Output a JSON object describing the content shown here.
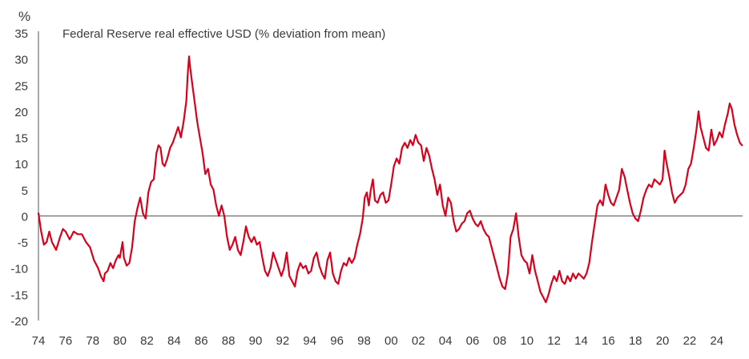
{
  "chart_data": {
    "type": "line",
    "title": "Federal Reserve real effective USD (% deviation from mean)",
    "ylabel": "%",
    "xlabel": "",
    "ylim": [
      -20,
      35
    ],
    "xlim": [
      1974.0,
      2025.9
    ],
    "yticks": [
      35,
      30,
      25,
      20,
      15,
      10,
      5,
      0,
      -5,
      -10,
      -15,
      -20
    ],
    "xtick_values": [
      1974,
      1976,
      1978,
      1980,
      1982,
      1984,
      1986,
      1988,
      1990,
      1992,
      1994,
      1996,
      1998,
      2000,
      2002,
      2004,
      2006,
      2008,
      2010,
      2012,
      2014,
      2016,
      2018,
      2020,
      2022,
      2024
    ],
    "xtick_labels": [
      "74",
      "76",
      "78",
      "80",
      "82",
      "84",
      "86",
      "88",
      "90",
      "92",
      "94",
      "96",
      "98",
      "00",
      "02",
      "04",
      "06",
      "08",
      "10",
      "12",
      "14",
      "16",
      "18",
      "20",
      "22",
      "24"
    ],
    "grid": false,
    "zero_line": true,
    "line_color": "#d9001b",
    "axis_color": "#555555",
    "series": [
      {
        "values": [
          [
            1974.0,
            0.5
          ],
          [
            1974.2,
            -3.0
          ],
          [
            1974.4,
            -5.5
          ],
          [
            1974.6,
            -5.0
          ],
          [
            1974.8,
            -3.0
          ],
          [
            1975.0,
            -5.0
          ],
          [
            1975.3,
            -6.5
          ],
          [
            1975.6,
            -4.0
          ],
          [
            1975.8,
            -2.5
          ],
          [
            1976.0,
            -3.0
          ],
          [
            1976.3,
            -4.5
          ],
          [
            1976.6,
            -3.0
          ],
          [
            1976.9,
            -3.5
          ],
          [
            1977.2,
            -3.5
          ],
          [
            1977.5,
            -5.0
          ],
          [
            1977.8,
            -6.0
          ],
          [
            1978.1,
            -8.5
          ],
          [
            1978.4,
            -10.0
          ],
          [
            1978.6,
            -11.5
          ],
          [
            1978.8,
            -12.5
          ],
          [
            1978.9,
            -11.0
          ],
          [
            1979.1,
            -10.5
          ],
          [
            1979.3,
            -9.0
          ],
          [
            1979.5,
            -10.0
          ],
          [
            1979.7,
            -8.5
          ],
          [
            1979.9,
            -7.5
          ],
          [
            1980.0,
            -8.0
          ],
          [
            1980.2,
            -5.0
          ],
          [
            1980.3,
            -8.0
          ],
          [
            1980.5,
            -9.5
          ],
          [
            1980.7,
            -9.0
          ],
          [
            1980.9,
            -6.0
          ],
          [
            1981.1,
            -1.0
          ],
          [
            1981.3,
            1.5
          ],
          [
            1981.5,
            3.5
          ],
          [
            1981.7,
            0.5
          ],
          [
            1981.9,
            -0.5
          ],
          [
            1982.1,
            4.5
          ],
          [
            1982.3,
            6.5
          ],
          [
            1982.5,
            7.0
          ],
          [
            1982.7,
            12.0
          ],
          [
            1982.85,
            13.5
          ],
          [
            1983.0,
            13.0
          ],
          [
            1983.15,
            10.0
          ],
          [
            1983.3,
            9.5
          ],
          [
            1983.5,
            11.0
          ],
          [
            1983.7,
            13.0
          ],
          [
            1983.9,
            14.0
          ],
          [
            1984.1,
            15.5
          ],
          [
            1984.3,
            17.0
          ],
          [
            1984.5,
            15.0
          ],
          [
            1984.7,
            18.0
          ],
          [
            1984.9,
            22.0
          ],
          [
            1985.0,
            27.0
          ],
          [
            1985.1,
            30.5
          ],
          [
            1985.2,
            28.0
          ],
          [
            1985.35,
            25.0
          ],
          [
            1985.5,
            22.0
          ],
          [
            1985.7,
            18.0
          ],
          [
            1985.9,
            15.0
          ],
          [
            1986.1,
            12.0
          ],
          [
            1986.3,
            8.0
          ],
          [
            1986.5,
            9.0
          ],
          [
            1986.7,
            6.0
          ],
          [
            1986.9,
            5.0
          ],
          [
            1987.1,
            2.0
          ],
          [
            1987.3,
            0.0
          ],
          [
            1987.5,
            2.0
          ],
          [
            1987.7,
            0.0
          ],
          [
            1987.9,
            -4.0
          ],
          [
            1988.1,
            -6.5
          ],
          [
            1988.3,
            -5.5
          ],
          [
            1988.5,
            -4.0
          ],
          [
            1988.7,
            -6.5
          ],
          [
            1988.9,
            -7.5
          ],
          [
            1989.1,
            -5.0
          ],
          [
            1989.3,
            -2.0
          ],
          [
            1989.5,
            -4.0
          ],
          [
            1989.7,
            -5.0
          ],
          [
            1989.9,
            -4.0
          ],
          [
            1990.1,
            -5.5
          ],
          [
            1990.3,
            -5.0
          ],
          [
            1990.5,
            -8.0
          ],
          [
            1990.7,
            -10.5
          ],
          [
            1990.9,
            -11.5
          ],
          [
            1991.1,
            -10.0
          ],
          [
            1991.3,
            -7.0
          ],
          [
            1991.5,
            -8.5
          ],
          [
            1991.7,
            -10.0
          ],
          [
            1991.9,
            -11.5
          ],
          [
            1992.1,
            -10.0
          ],
          [
            1992.3,
            -7.0
          ],
          [
            1992.5,
            -11.5
          ],
          [
            1992.7,
            -12.5
          ],
          [
            1992.9,
            -13.5
          ],
          [
            1993.1,
            -10.5
          ],
          [
            1993.3,
            -9.0
          ],
          [
            1993.5,
            -10.0
          ],
          [
            1993.7,
            -9.5
          ],
          [
            1993.9,
            -11.0
          ],
          [
            1994.1,
            -10.5
          ],
          [
            1994.3,
            -8.0
          ],
          [
            1994.5,
            -7.0
          ],
          [
            1994.7,
            -9.5
          ],
          [
            1994.9,
            -11.0
          ],
          [
            1995.1,
            -12.0
          ],
          [
            1995.3,
            -8.5
          ],
          [
            1995.5,
            -7.0
          ],
          [
            1995.7,
            -11.0
          ],
          [
            1995.9,
            -12.5
          ],
          [
            1996.1,
            -13.0
          ],
          [
            1996.3,
            -10.5
          ],
          [
            1996.5,
            -9.0
          ],
          [
            1996.7,
            -9.5
          ],
          [
            1996.9,
            -8.0
          ],
          [
            1997.1,
            -9.0
          ],
          [
            1997.3,
            -8.0
          ],
          [
            1997.5,
            -5.5
          ],
          [
            1997.7,
            -3.5
          ],
          [
            1997.9,
            -0.5
          ],
          [
            1998.05,
            3.5
          ],
          [
            1998.2,
            4.5
          ],
          [
            1998.35,
            2.0
          ],
          [
            1998.5,
            5.0
          ],
          [
            1998.65,
            7.0
          ],
          [
            1998.8,
            3.0
          ],
          [
            1999.0,
            2.5
          ],
          [
            1999.2,
            4.0
          ],
          [
            1999.4,
            4.5
          ],
          [
            1999.6,
            2.5
          ],
          [
            1999.8,
            3.0
          ],
          [
            2000.0,
            6.0
          ],
          [
            2000.2,
            9.5
          ],
          [
            2000.4,
            11.0
          ],
          [
            2000.6,
            10.0
          ],
          [
            2000.8,
            13.0
          ],
          [
            2001.0,
            14.0
          ],
          [
            2001.2,
            13.0
          ],
          [
            2001.4,
            14.5
          ],
          [
            2001.6,
            13.5
          ],
          [
            2001.8,
            15.5
          ],
          [
            2002.0,
            14.0
          ],
          [
            2002.2,
            13.5
          ],
          [
            2002.4,
            10.5
          ],
          [
            2002.6,
            13.0
          ],
          [
            2002.8,
            11.5
          ],
          [
            2003.0,
            9.0
          ],
          [
            2003.2,
            7.0
          ],
          [
            2003.4,
            4.0
          ],
          [
            2003.6,
            6.0
          ],
          [
            2003.8,
            2.0
          ],
          [
            2004.0,
            0.0
          ],
          [
            2004.2,
            3.5
          ],
          [
            2004.4,
            2.5
          ],
          [
            2004.6,
            -1.0
          ],
          [
            2004.8,
            -3.0
          ],
          [
            2005.0,
            -2.5
          ],
          [
            2005.2,
            -1.5
          ],
          [
            2005.4,
            -1.0
          ],
          [
            2005.6,
            0.5
          ],
          [
            2005.8,
            1.0
          ],
          [
            2006.0,
            -0.5
          ],
          [
            2006.2,
            -1.5
          ],
          [
            2006.4,
            -2.0
          ],
          [
            2006.6,
            -1.0
          ],
          [
            2006.8,
            -2.5
          ],
          [
            2007.0,
            -3.5
          ],
          [
            2007.2,
            -4.0
          ],
          [
            2007.4,
            -6.0
          ],
          [
            2007.6,
            -8.0
          ],
          [
            2007.8,
            -10.0
          ],
          [
            2008.0,
            -12.0
          ],
          [
            2008.2,
            -13.5
          ],
          [
            2008.4,
            -14.0
          ],
          [
            2008.6,
            -11.0
          ],
          [
            2008.8,
            -4.0
          ],
          [
            2009.0,
            -2.5
          ],
          [
            2009.2,
            0.5
          ],
          [
            2009.4,
            -4.0
          ],
          [
            2009.6,
            -7.5
          ],
          [
            2009.8,
            -8.5
          ],
          [
            2010.0,
            -9.0
          ],
          [
            2010.2,
            -11.0
          ],
          [
            2010.4,
            -7.5
          ],
          [
            2010.6,
            -10.5
          ],
          [
            2010.8,
            -12.5
          ],
          [
            2011.0,
            -14.5
          ],
          [
            2011.2,
            -15.5
          ],
          [
            2011.4,
            -16.5
          ],
          [
            2011.6,
            -15.0
          ],
          [
            2011.8,
            -13.0
          ],
          [
            2012.0,
            -11.5
          ],
          [
            2012.2,
            -12.5
          ],
          [
            2012.4,
            -10.5
          ],
          [
            2012.6,
            -12.5
          ],
          [
            2012.8,
            -13.0
          ],
          [
            2013.0,
            -11.5
          ],
          [
            2013.2,
            -12.5
          ],
          [
            2013.4,
            -11.0
          ],
          [
            2013.6,
            -12.0
          ],
          [
            2013.8,
            -11.0
          ],
          [
            2014.0,
            -11.5
          ],
          [
            2014.2,
            -12.0
          ],
          [
            2014.4,
            -11.0
          ],
          [
            2014.6,
            -9.0
          ],
          [
            2014.8,
            -5.0
          ],
          [
            2015.0,
            -1.5
          ],
          [
            2015.2,
            2.0
          ],
          [
            2015.4,
            3.0
          ],
          [
            2015.6,
            2.0
          ],
          [
            2015.8,
            6.0
          ],
          [
            2016.0,
            4.0
          ],
          [
            2016.2,
            2.5
          ],
          [
            2016.4,
            2.0
          ],
          [
            2016.6,
            3.5
          ],
          [
            2016.8,
            5.0
          ],
          [
            2017.0,
            9.0
          ],
          [
            2017.2,
            7.5
          ],
          [
            2017.4,
            5.0
          ],
          [
            2017.6,
            2.5
          ],
          [
            2017.8,
            0.5
          ],
          [
            2018.0,
            -0.5
          ],
          [
            2018.2,
            -1.0
          ],
          [
            2018.4,
            1.0
          ],
          [
            2018.6,
            3.5
          ],
          [
            2018.8,
            5.0
          ],
          [
            2019.0,
            6.0
          ],
          [
            2019.2,
            5.5
          ],
          [
            2019.4,
            7.0
          ],
          [
            2019.6,
            6.5
          ],
          [
            2019.8,
            6.0
          ],
          [
            2020.0,
            7.0
          ],
          [
            2020.15,
            12.5
          ],
          [
            2020.3,
            10.0
          ],
          [
            2020.5,
            7.5
          ],
          [
            2020.7,
            4.5
          ],
          [
            2020.9,
            2.5
          ],
          [
            2021.1,
            3.5
          ],
          [
            2021.3,
            4.0
          ],
          [
            2021.5,
            4.5
          ],
          [
            2021.7,
            6.0
          ],
          [
            2021.9,
            9.0
          ],
          [
            2022.1,
            10.0
          ],
          [
            2022.3,
            13.0
          ],
          [
            2022.5,
            16.5
          ],
          [
            2022.65,
            20.0
          ],
          [
            2022.8,
            17.0
          ],
          [
            2023.0,
            15.0
          ],
          [
            2023.2,
            13.0
          ],
          [
            2023.4,
            12.5
          ],
          [
            2023.6,
            16.5
          ],
          [
            2023.8,
            13.5
          ],
          [
            2024.0,
            14.5
          ],
          [
            2024.2,
            16.0
          ],
          [
            2024.4,
            15.0
          ],
          [
            2024.6,
            17.5
          ],
          [
            2024.8,
            19.5
          ],
          [
            2024.95,
            21.5
          ],
          [
            2025.1,
            20.5
          ],
          [
            2025.3,
            17.5
          ],
          [
            2025.5,
            15.5
          ],
          [
            2025.7,
            14.0
          ],
          [
            2025.85,
            13.5
          ]
        ]
      }
    ]
  }
}
